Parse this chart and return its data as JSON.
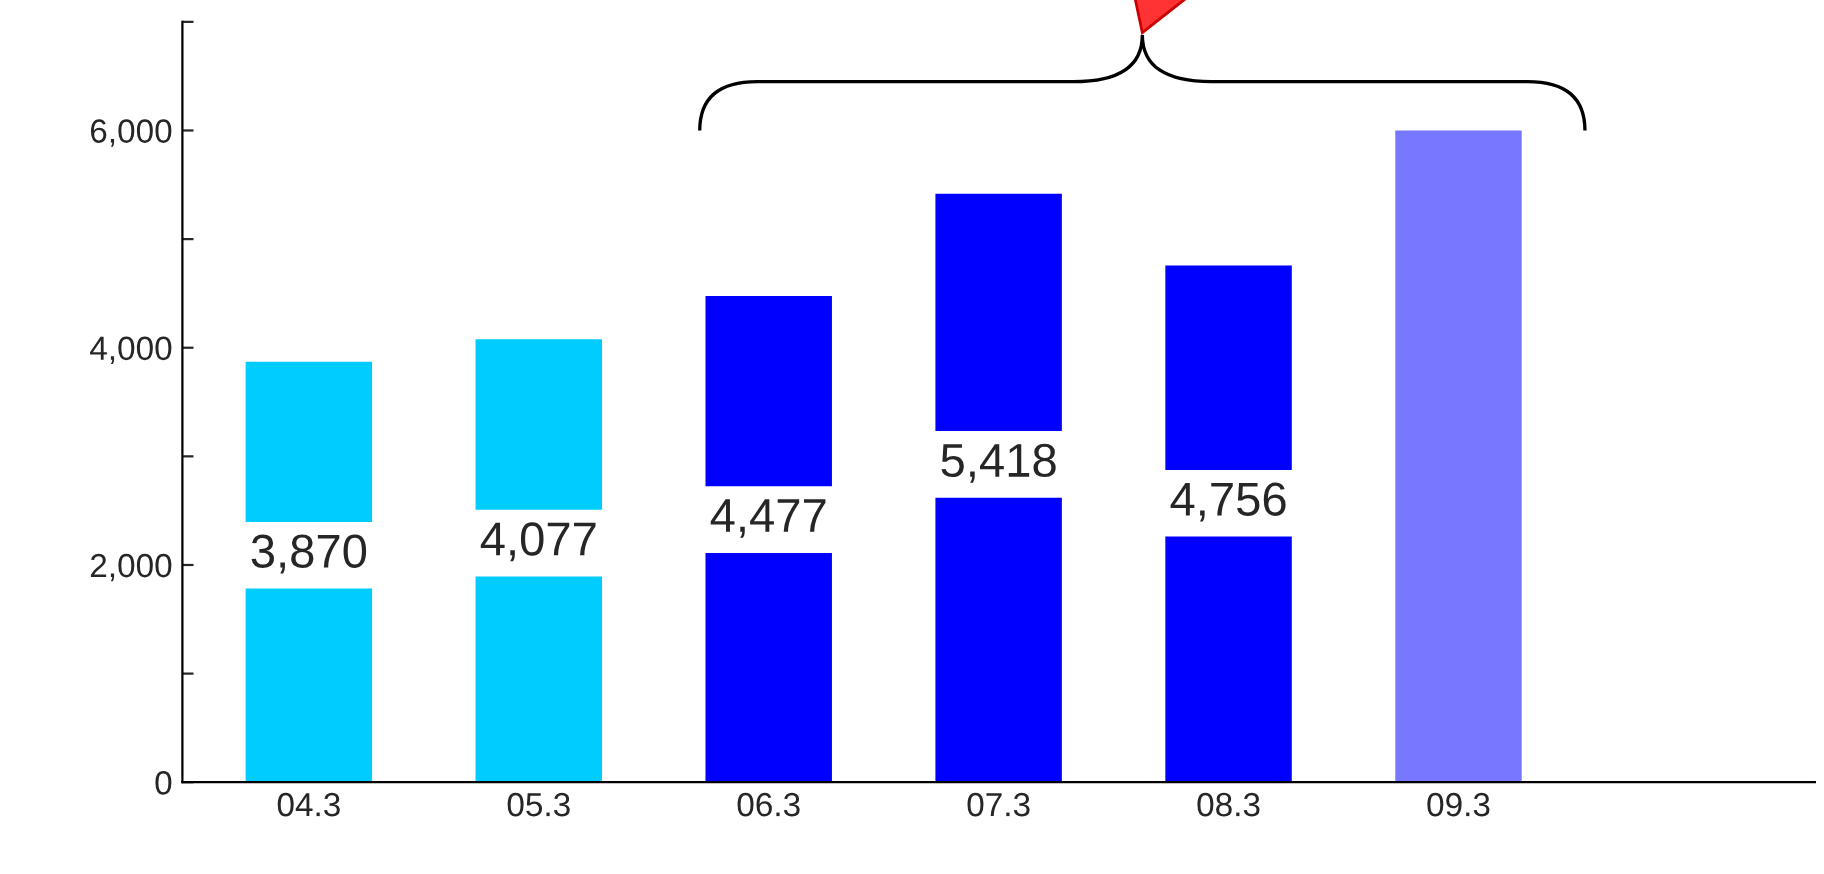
{
  "chart_data": {
    "type": "bar",
    "categories": [
      "04.3",
      "05.3",
      "06.3",
      "07.3",
      "08.3",
      "09.3"
    ],
    "values": [
      3870,
      4077,
      4477,
      5418,
      4756,
      6000
    ],
    "colors": [
      "#00ccff",
      "#00ccff",
      "#0000ff",
      "#0000ff",
      "#0000ff",
      "#7777ff"
    ],
    "value_labels": [
      "3,870",
      "4,077",
      "4,477",
      "5,418",
      "4,756",
      null
    ],
    "ylim": [
      0,
      7000
    ],
    "yticks": [
      0,
      {
        "value": 1000,
        "label": null
      },
      {
        "value": 2000,
        "label": "2,000"
      },
      {
        "value": 3000,
        "label": null
      },
      {
        "value": 4000,
        "label": "4,000"
      },
      {
        "value": 5000,
        "label": null
      },
      {
        "value": 6000,
        "label": "6,000"
      },
      {
        "value": 7000,
        "label": null
      }
    ],
    "grid": false
  }
}
